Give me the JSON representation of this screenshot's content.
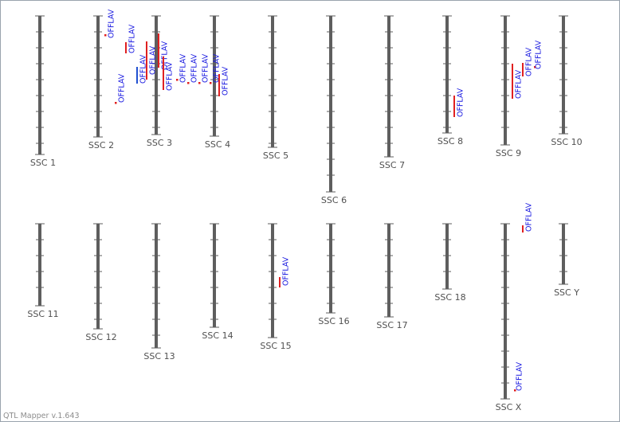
{
  "app": {
    "version_text": "QTL Mapper v.1.643"
  },
  "colors": {
    "chromosome": "#5e5e5e",
    "tick": "#5e5e5e",
    "chromosome_label": "#505050",
    "qtl_text": "#1a1ae0",
    "qtl_bar_red": "#e02020",
    "qtl_bar_blue": "#2050d0",
    "qtl_dot": "#e02020"
  },
  "chromosomes": [
    {
      "name": "SSC 1"
    },
    {
      "name": "SSC 2"
    },
    {
      "name": "SSC 3"
    },
    {
      "name": "SSC 4"
    },
    {
      "name": "SSC 5"
    },
    {
      "name": "SSC 6"
    },
    {
      "name": "SSC 7"
    },
    {
      "name": "SSC 8"
    },
    {
      "name": "SSC 9"
    },
    {
      "name": "SSC 10"
    },
    {
      "name": "SSC 11"
    },
    {
      "name": "SSC 12"
    },
    {
      "name": "SSC 13"
    },
    {
      "name": "SSC 14"
    },
    {
      "name": "SSC 15"
    },
    {
      "name": "SSC 16"
    },
    {
      "name": "SSC 17"
    },
    {
      "name": "SSC 18"
    },
    {
      "name": "SSC X"
    },
    {
      "name": "SSC Y"
    }
  ],
  "qtls": [
    {
      "chromosome": "SSC 2",
      "label": "OFFLAV"
    },
    {
      "chromosome": "SSC 2",
      "label": "OFFLAV"
    },
    {
      "chromosome": "SSC 2",
      "label": "OFFLAV"
    },
    {
      "chromosome": "SSC 2",
      "label": "OFFLAV"
    },
    {
      "chromosome": "SSC 2",
      "label": "OFFLAV"
    },
    {
      "chromosome": "SSC 3",
      "label": "OFFLAV"
    },
    {
      "chromosome": "SSC 3",
      "label": "OFFLAV"
    },
    {
      "chromosome": "SSC 3",
      "label": "OFFLAV"
    },
    {
      "chromosome": "SSC 3",
      "label": "OFFLAV"
    },
    {
      "chromosome": "SSC 3",
      "label": "OFFLAV"
    },
    {
      "chromosome": "SSC 3",
      "label": "OFFLAV"
    },
    {
      "chromosome": "SSC 4",
      "label": "OFFLAV"
    },
    {
      "chromosome": "SSC 8",
      "label": "OFFLAV"
    },
    {
      "chromosome": "SSC 9",
      "label": "OFFLAV"
    },
    {
      "chromosome": "SSC 9",
      "label": "OFFLAV"
    },
    {
      "chromosome": "SSC 9",
      "label": "OFFLAV"
    },
    {
      "chromosome": "SSC 15",
      "label": "OFFLAV"
    },
    {
      "chromosome": "SSC X",
      "label": "OFFLAV"
    },
    {
      "chromosome": "SSC X",
      "label": "OFFLAV"
    }
  ]
}
